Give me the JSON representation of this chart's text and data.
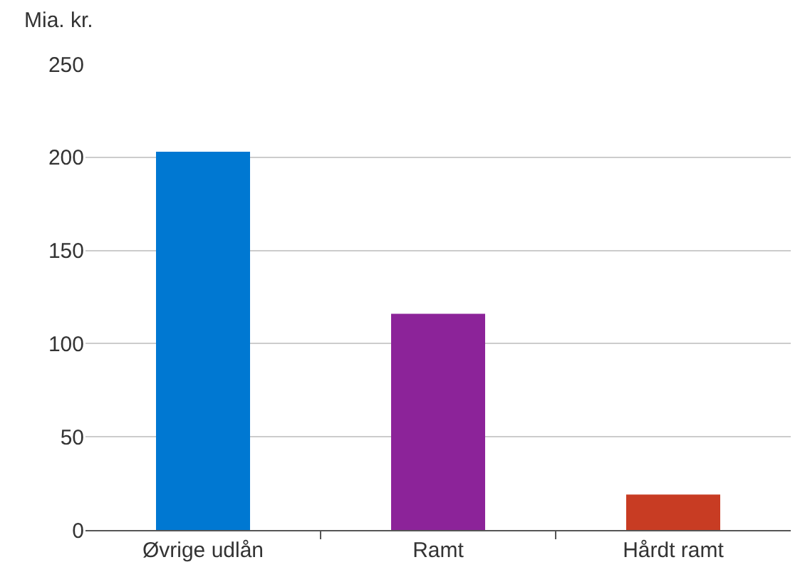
{
  "chart_data": {
    "type": "bar",
    "ylabel": "Mia. kr.",
    "categories": [
      "Øvrige udlån",
      "Ramt",
      "Hårdt ramt"
    ],
    "values": [
      203,
      116,
      19
    ],
    "colors": [
      "#0078d2",
      "#8c2399",
      "#c83c23"
    ],
    "ylim": [
      0,
      250
    ],
    "yticks": [
      0,
      50,
      100,
      150,
      200,
      250
    ],
    "grid": "y"
  }
}
